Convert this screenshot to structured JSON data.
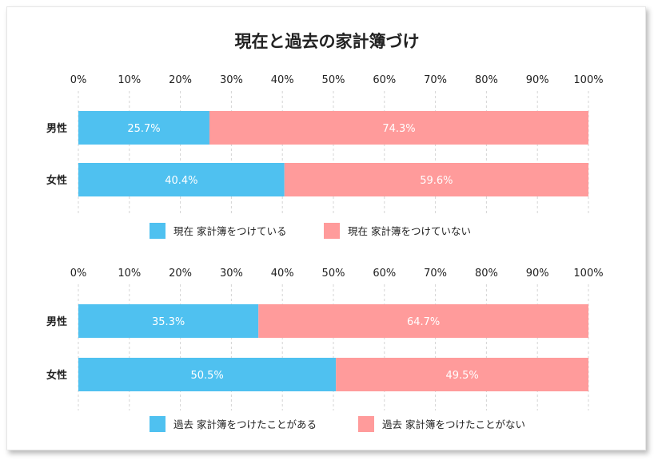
{
  "title": "現在と過去の家計簿づけ",
  "colors": {
    "blue": "#4fc1f0",
    "pink": "#ff9b9b"
  },
  "chart_data": [
    {
      "type": "bar",
      "orientation": "horizontal",
      "stacked": true,
      "categories": [
        "男性",
        "女性"
      ],
      "x_ticks": [
        "0%",
        "10%",
        "20%",
        "30%",
        "40%",
        "50%",
        "60%",
        "70%",
        "80%",
        "90%",
        "100%"
      ],
      "xlim": [
        0,
        100
      ],
      "grid": true,
      "legend_position": "bottom",
      "series": [
        {
          "name": "現在 家計簿をつけている",
          "color": "#4fc1f0",
          "values": [
            25.7,
            40.4
          ],
          "labels": [
            "25.7%",
            "40.4%"
          ]
        },
        {
          "name": "現在 家計簿をつけていない",
          "color": "#ff9b9b",
          "values": [
            74.3,
            59.6
          ],
          "labels": [
            "74.3%",
            "59.6%"
          ]
        }
      ]
    },
    {
      "type": "bar",
      "orientation": "horizontal",
      "stacked": true,
      "categories": [
        "男性",
        "女性"
      ],
      "x_ticks": [
        "0%",
        "10%",
        "20%",
        "30%",
        "40%",
        "50%",
        "60%",
        "70%",
        "80%",
        "90%",
        "100%"
      ],
      "xlim": [
        0,
        100
      ],
      "grid": true,
      "legend_position": "bottom",
      "series": [
        {
          "name": "過去 家計簿をつけたことがある",
          "color": "#4fc1f0",
          "values": [
            35.3,
            50.5
          ],
          "labels": [
            "35.3%",
            "50.5%"
          ]
        },
        {
          "name": "過去 家計簿をつけたことがない",
          "color": "#ff9b9b",
          "values": [
            64.7,
            49.5
          ],
          "labels": [
            "64.7%",
            "49.5%"
          ]
        }
      ]
    }
  ]
}
